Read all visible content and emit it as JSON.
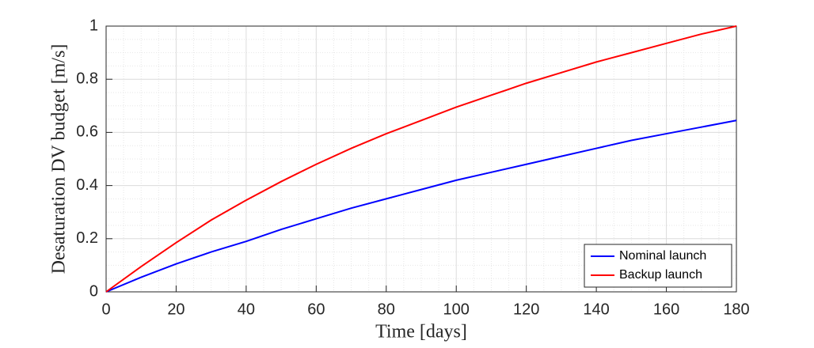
{
  "chart_data": {
    "type": "line",
    "xlabel": "Time [days]",
    "ylabel": "Desaturation DV budget [m/s]",
    "x": [
      0,
      10,
      20,
      30,
      40,
      50,
      60,
      70,
      80,
      90,
      100,
      110,
      120,
      130,
      140,
      150,
      160,
      170,
      180
    ],
    "series": [
      {
        "name": "Nominal launch",
        "color": "#0000ff",
        "values": [
          0,
          0.055,
          0.105,
          0.15,
          0.19,
          0.235,
          0.275,
          0.315,
          0.35,
          0.385,
          0.42,
          0.45,
          0.48,
          0.51,
          0.54,
          0.57,
          0.595,
          0.62,
          0.645
        ]
      },
      {
        "name": "Backup launch",
        "color": "#ff0000",
        "values": [
          0,
          0.095,
          0.185,
          0.27,
          0.345,
          0.415,
          0.48,
          0.54,
          0.595,
          0.645,
          0.695,
          0.74,
          0.785,
          0.825,
          0.865,
          0.9,
          0.935,
          0.97,
          1.0
        ]
      }
    ],
    "xlim": [
      0,
      180
    ],
    "xticks": [
      0,
      20,
      40,
      60,
      80,
      100,
      120,
      140,
      160,
      180
    ],
    "ylim": [
      0,
      1
    ],
    "yticks": [
      0,
      0.2,
      0.4,
      0.6,
      0.8,
      1
    ],
    "grid": true,
    "minor_grid": true,
    "legend": "lower right"
  }
}
